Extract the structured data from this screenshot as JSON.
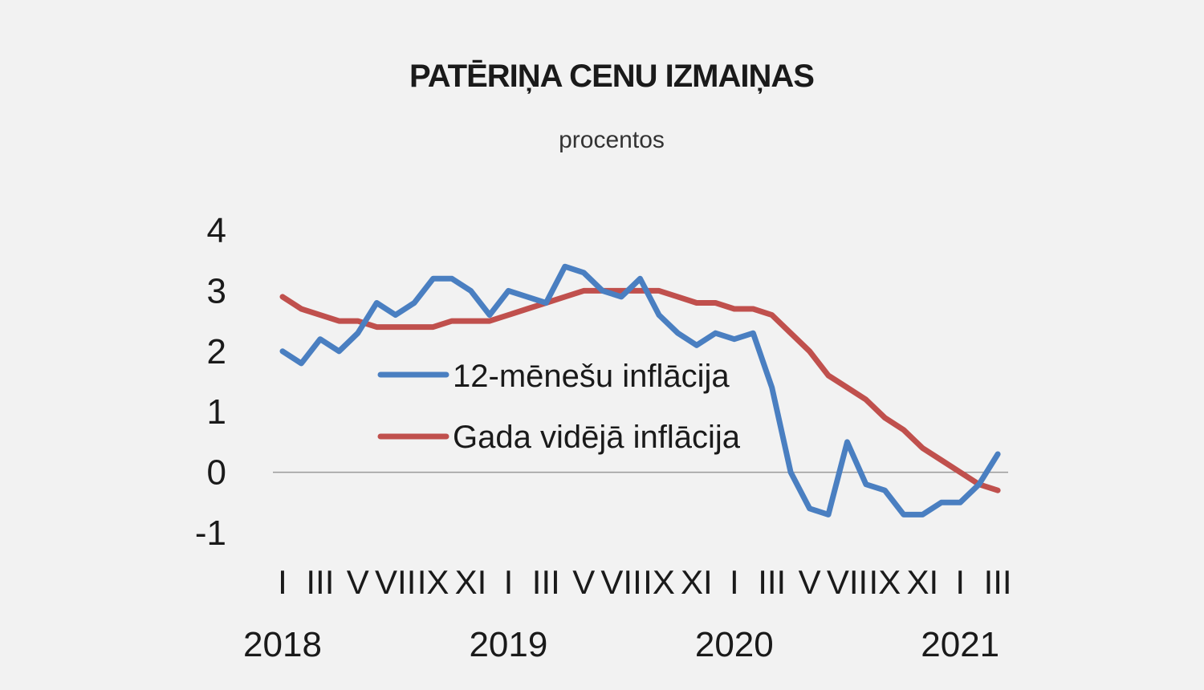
{
  "chart_data": {
    "type": "line",
    "title": "PATĒRIŅA CENU IZMAIŅAS",
    "subtitle": "procentos",
    "ylim": [
      -1,
      4
    ],
    "yticks": [
      "4",
      "3",
      "2",
      "1",
      "0",
      "-1"
    ],
    "month_labels": [
      "I",
      "III",
      "V",
      "VII",
      "IX",
      "XI",
      "I",
      "III",
      "V",
      "VII",
      "IX",
      "XI",
      "I",
      "III",
      "V",
      "VII",
      "IX",
      "XI",
      "I",
      "III"
    ],
    "years": [
      "2018",
      "2019",
      "2020",
      "2021"
    ],
    "x": [
      "2018-01",
      "2018-02",
      "2018-03",
      "2018-04",
      "2018-05",
      "2018-06",
      "2018-07",
      "2018-08",
      "2018-09",
      "2018-10",
      "2018-11",
      "2018-12",
      "2019-01",
      "2019-02",
      "2019-03",
      "2019-04",
      "2019-05",
      "2019-06",
      "2019-07",
      "2019-08",
      "2019-09",
      "2019-10",
      "2019-11",
      "2019-12",
      "2020-01",
      "2020-02",
      "2020-03",
      "2020-04",
      "2020-05",
      "2020-06",
      "2020-07",
      "2020-08",
      "2020-09",
      "2020-10",
      "2020-11",
      "2020-12",
      "2021-01",
      "2021-02",
      "2021-03"
    ],
    "series": [
      {
        "name": "12-mēnešu inflācija",
        "color": "#4a7fc1",
        "values": [
          2.0,
          1.8,
          2.2,
          2.0,
          2.3,
          2.8,
          2.6,
          2.8,
          3.2,
          3.2,
          3.0,
          2.6,
          3.0,
          2.9,
          2.8,
          3.4,
          3.3,
          3.0,
          2.9,
          3.2,
          2.6,
          2.3,
          2.1,
          2.3,
          2.2,
          2.3,
          1.4,
          0.0,
          -0.6,
          -0.7,
          0.5,
          -0.2,
          -0.3,
          -0.7,
          -0.7,
          -0.5,
          -0.5,
          -0.2,
          0.3
        ]
      },
      {
        "name": "Gada vidējā inflācija",
        "color": "#c0504d",
        "values": [
          2.9,
          2.7,
          2.6,
          2.5,
          2.5,
          2.4,
          2.4,
          2.4,
          2.4,
          2.5,
          2.5,
          2.5,
          2.6,
          2.7,
          2.8,
          2.9,
          3.0,
          3.0,
          3.0,
          3.0,
          3.0,
          2.9,
          2.8,
          2.8,
          2.7,
          2.7,
          2.6,
          2.3,
          2.0,
          1.6,
          1.4,
          1.2,
          0.9,
          0.7,
          0.4,
          0.2,
          0.0,
          -0.2,
          -0.3
        ]
      }
    ]
  }
}
